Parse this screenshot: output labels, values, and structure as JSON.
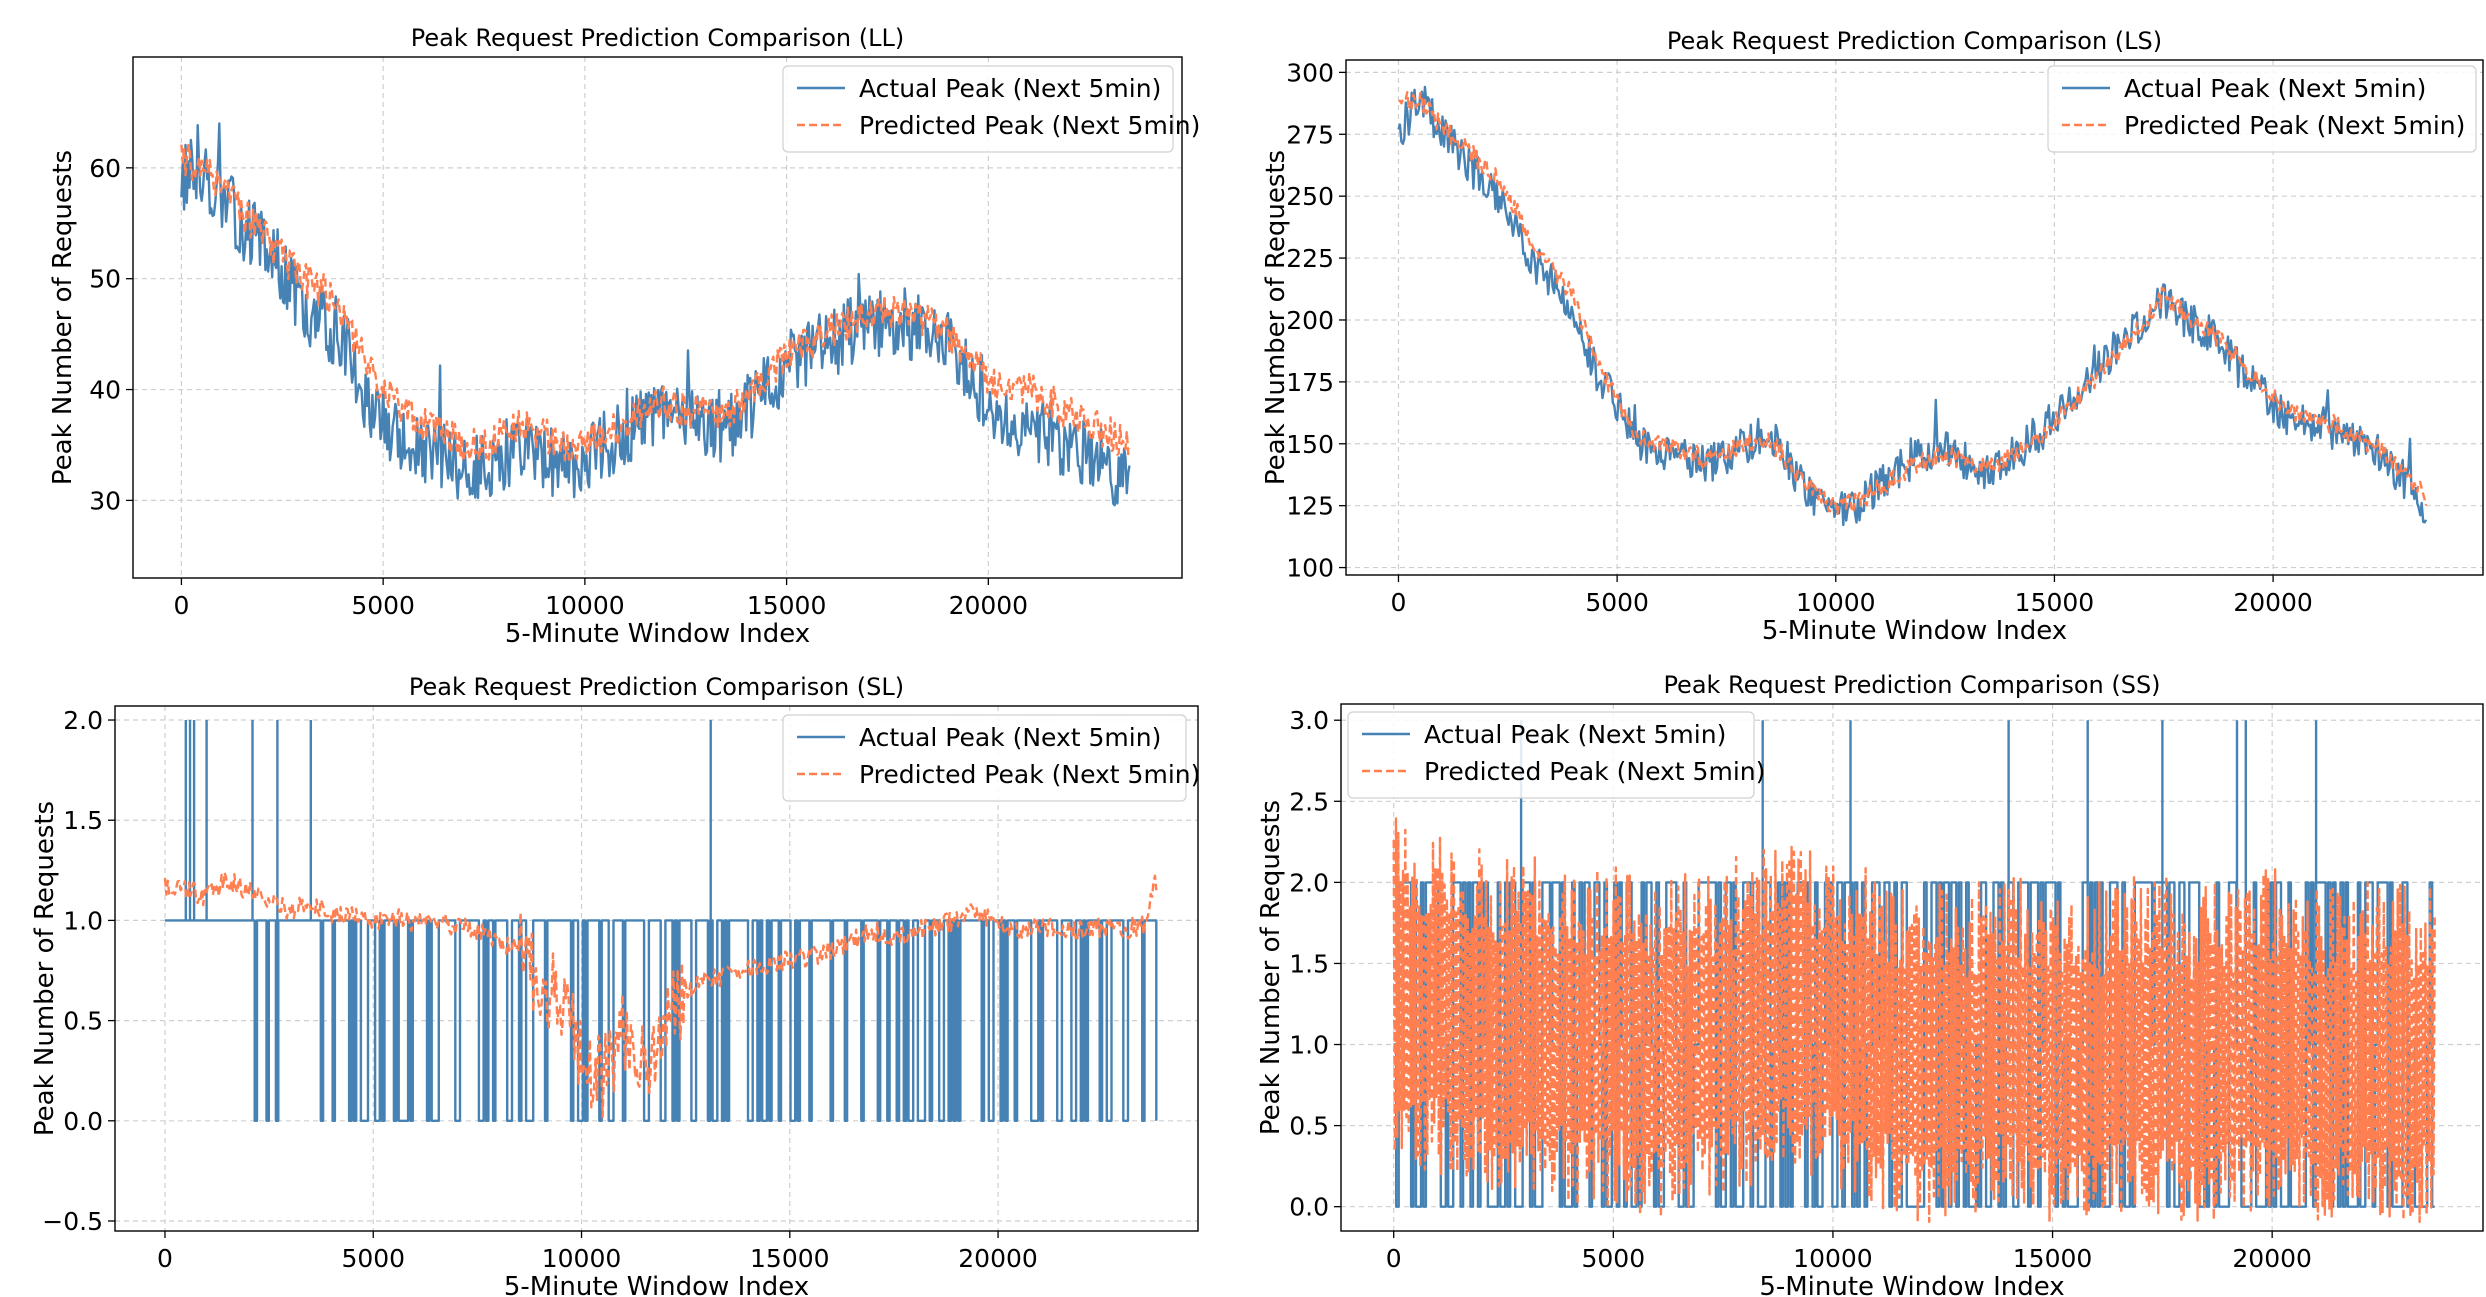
{
  "chart_data": [
    {
      "type": "line",
      "title": "Peak Request Prediction Comparison (LL)",
      "xlabel": "5-Minute Window Index",
      "ylabel": "Peak Number of Requests",
      "xlim": [
        -1200,
        24800
      ],
      "ylim": [
        23,
        70
      ],
      "xticks": [
        0,
        5000,
        10000,
        15000,
        20000
      ],
      "yticks": [
        30,
        40,
        50,
        60
      ],
      "ytick_labels": [
        "30",
        "40",
        "50",
        "60"
      ],
      "grid": true,
      "legend": {
        "position": "top-right",
        "entries": [
          "Actual Peak (Next 5min)",
          "Predicted Peak (Next 5min)"
        ]
      },
      "series": [
        {
          "name": "Actual Peak (Next 5min)",
          "color": "#4682b4",
          "style": "solid",
          "x": [
            0,
            500,
            1000,
            1500,
            2000,
            2500,
            3000,
            3500,
            4000,
            4500,
            5000,
            5500,
            6000,
            6500,
            7000,
            7500,
            8000,
            8500,
            9000,
            9500,
            10000,
            10500,
            11000,
            11500,
            12000,
            12500,
            13000,
            13500,
            14000,
            14500,
            15000,
            15500,
            16000,
            16500,
            17000,
            17500,
            18000,
            18500,
            19000,
            19500,
            20000,
            20500,
            21000,
            21500,
            22000,
            22500,
            23000,
            23500
          ],
          "y": [
            59,
            60,
            57,
            55,
            53,
            51,
            47,
            46,
            45,
            40,
            37,
            35,
            34,
            34,
            33,
            33,
            34,
            35,
            34,
            33,
            34,
            35,
            36,
            37,
            38,
            37,
            37,
            36,
            38,
            40,
            42,
            43,
            44,
            45,
            46,
            46,
            46,
            45,
            44,
            42,
            39,
            37,
            37,
            36,
            35,
            34,
            33,
            32
          ]
        },
        {
          "name": "Predicted Peak (Next 5min)",
          "color": "#ff7f50",
          "style": "dashed",
          "x": [
            0,
            500,
            1000,
            1500,
            2000,
            2500,
            3000,
            3500,
            4000,
            4500,
            5000,
            5500,
            6000,
            6500,
            7000,
            7500,
            8000,
            8500,
            9000,
            9500,
            10000,
            10500,
            11000,
            11500,
            12000,
            12500,
            13000,
            13500,
            14000,
            14500,
            15000,
            15500,
            16000,
            16500,
            17000,
            17500,
            18000,
            18500,
            19000,
            19500,
            20000,
            20500,
            21000,
            21500,
            22000,
            22500,
            23000,
            23500
          ],
          "y": [
            61,
            60,
            58,
            56,
            54,
            52,
            50,
            49,
            47,
            43,
            40,
            38,
            37,
            36,
            35,
            35,
            36,
            37,
            36,
            35,
            35,
            36,
            37,
            38,
            39,
            38,
            38,
            38,
            39,
            41,
            43,
            44,
            45,
            46,
            47,
            47,
            47,
            46,
            45,
            43,
            41,
            40,
            40,
            39,
            38,
            37,
            36,
            35
          ]
        }
      ]
    },
    {
      "type": "line",
      "title": "Peak Request Prediction Comparison (LS)",
      "xlabel": "5-Minute Window Index",
      "ylabel": "Peak Number of Requests",
      "xlim": [
        -1200,
        24800
      ],
      "ylim": [
        97,
        305
      ],
      "xticks": [
        0,
        5000,
        10000,
        15000,
        20000
      ],
      "yticks": [
        100,
        125,
        150,
        175,
        200,
        225,
        250,
        275,
        300
      ],
      "ytick_labels": [
        "100",
        "125",
        "150",
        "175",
        "200",
        "225",
        "250",
        "275",
        "300"
      ],
      "grid": true,
      "legend": {
        "position": "top-right",
        "entries": [
          "Actual Peak (Next 5min)",
          "Predicted Peak (Next 5min)"
        ]
      },
      "series": [
        {
          "name": "Actual Peak (Next 5min)",
          "color": "#4682b4",
          "style": "solid",
          "x": [
            0,
            500,
            1000,
            1500,
            2000,
            2500,
            3000,
            3500,
            4000,
            4500,
            5000,
            5500,
            6000,
            6500,
            7000,
            7500,
            8000,
            8500,
            9000,
            9500,
            10000,
            10500,
            11000,
            11500,
            12000,
            12500,
            13000,
            13500,
            14000,
            14500,
            15000,
            15500,
            16000,
            16500,
            17000,
            17500,
            18000,
            18500,
            19000,
            19500,
            20000,
            20500,
            21000,
            21500,
            22000,
            22500,
            23000,
            23500
          ],
          "y": [
            275,
            290,
            275,
            265,
            255,
            245,
            225,
            215,
            205,
            180,
            165,
            150,
            148,
            145,
            142,
            145,
            150,
            155,
            140,
            128,
            122,
            125,
            135,
            140,
            145,
            148,
            142,
            138,
            145,
            152,
            160,
            170,
            180,
            190,
            200,
            208,
            200,
            195,
            185,
            175,
            165,
            160,
            158,
            155,
            150,
            145,
            135,
            125
          ]
        },
        {
          "name": "Predicted Peak (Next 5min)",
          "color": "#ff7f50",
          "style": "dashed",
          "x": [
            0,
            500,
            1000,
            1500,
            2000,
            2500,
            3000,
            3500,
            4000,
            4500,
            5000,
            5500,
            6000,
            6500,
            7000,
            7500,
            8000,
            8500,
            9000,
            9500,
            10000,
            10500,
            11000,
            11500,
            12000,
            12500,
            13000,
            13500,
            14000,
            14500,
            15000,
            15500,
            16000,
            16500,
            17000,
            17500,
            18000,
            18500,
            19000,
            19500,
            20000,
            20500,
            21000,
            21500,
            22000,
            22500,
            23000,
            23500
          ],
          "y": [
            290,
            288,
            278,
            270,
            262,
            252,
            232,
            220,
            210,
            185,
            168,
            152,
            150,
            147,
            144,
            146,
            150,
            152,
            140,
            130,
            125,
            126,
            132,
            138,
            143,
            146,
            143,
            140,
            145,
            150,
            158,
            168,
            178,
            188,
            198,
            210,
            202,
            196,
            188,
            178,
            168,
            163,
            160,
            157,
            152,
            147,
            138,
            128
          ]
        }
      ]
    },
    {
      "type": "line",
      "title": "Peak Request Prediction Comparison (SL)",
      "xlabel": "5-Minute Window Index",
      "ylabel": "Peak Number of Requests",
      "xlim": [
        -1200,
        24800
      ],
      "ylim": [
        -0.55,
        2.07
      ],
      "xticks": [
        0,
        5000,
        10000,
        15000,
        20000
      ],
      "yticks": [
        -0.5,
        0.0,
        0.5,
        1.0,
        1.5,
        2.0
      ],
      "ytick_labels": [
        "−0.5",
        "0.0",
        "0.5",
        "1.0",
        "1.5",
        "2.0"
      ],
      "grid": true,
      "legend": {
        "position": "top-right",
        "entries": [
          "Actual Peak (Next 5min)",
          "Predicted Peak (Next 5min)"
        ]
      },
      "spikes": [
        500,
        600,
        700,
        1000,
        2100,
        2700,
        3500,
        13100
      ],
      "series": [
        {
          "name": "Actual Peak (Next 5min)",
          "color": "#4682b4",
          "style": "solid",
          "x": [
            0,
            1000,
            2000,
            3000,
            4000,
            5000,
            6000,
            7000,
            8000,
            9000,
            10000,
            11000,
            12000,
            13000,
            14000,
            15000,
            16000,
            17000,
            18000,
            19000,
            20000,
            21000,
            22000,
            23000,
            23800
          ],
          "y": [
            1,
            1,
            1,
            1,
            1,
            1,
            1,
            1,
            1,
            1,
            1,
            1,
            1,
            1,
            1,
            1,
            1,
            1,
            1,
            1,
            1,
            1,
            1,
            1,
            1
          ]
        },
        {
          "name": "Predicted Peak (Next 5min)",
          "color": "#ff7f50",
          "style": "dashed",
          "x": [
            0,
            500,
            1000,
            1500,
            2000,
            2500,
            3000,
            3500,
            4000,
            4500,
            5000,
            5500,
            6000,
            6500,
            7000,
            7500,
            8000,
            8500,
            9000,
            9500,
            10000,
            10500,
            11000,
            11500,
            12000,
            12500,
            13000,
            13500,
            14000,
            14500,
            15000,
            15500,
            16000,
            16500,
            17000,
            17500,
            18000,
            18500,
            19000,
            19500,
            20000,
            20500,
            21000,
            21500,
            22000,
            22500,
            23000,
            23500,
            23800
          ],
          "y": [
            1.18,
            1.15,
            1.12,
            1.2,
            1.15,
            1.1,
            1.05,
            1.08,
            1.03,
            1.02,
            1.0,
            1.02,
            0.98,
            1.0,
            0.97,
            0.95,
            0.9,
            0.85,
            0.7,
            0.6,
            0.35,
            0.2,
            0.45,
            0.25,
            0.55,
            0.65,
            0.7,
            0.72,
            0.75,
            0.78,
            0.8,
            0.82,
            0.85,
            0.9,
            0.95,
            0.92,
            0.95,
            0.97,
            1.0,
            1.05,
            0.98,
            0.95,
            0.97,
            0.96,
            0.95,
            0.97,
            0.95,
            0.98,
            1.2
          ]
        }
      ]
    },
    {
      "type": "line",
      "title": "Peak Request Prediction Comparison (SS)",
      "xlabel": "5-Minute Window Index",
      "ylabel": "Peak Number of Requests",
      "xlim": [
        -1200,
        24800
      ],
      "ylim": [
        -0.15,
        3.1
      ],
      "xticks": [
        0,
        5000,
        10000,
        15000,
        20000
      ],
      "yticks": [
        0.0,
        0.5,
        1.0,
        1.5,
        2.0,
        2.5,
        3.0
      ],
      "ytick_labels": [
        "0.0",
        "0.5",
        "1.0",
        "1.5",
        "2.0",
        "2.5",
        "3.0"
      ],
      "grid": true,
      "legend": {
        "position": "top-left",
        "entries": [
          "Actual Peak (Next 5min)",
          "Predicted Peak (Next 5min)"
        ]
      },
      "spikes": [
        2900,
        8400,
        10400,
        14000,
        15800,
        17500,
        19200,
        19400,
        21000
      ],
      "series": [
        {
          "name": "Actual Peak (Next 5min)",
          "color": "#4682b4",
          "style": "solid",
          "x": [
            0,
            1000,
            2000,
            3000,
            4000,
            5000,
            6000,
            7000,
            8000,
            9000,
            10000,
            11000,
            12000,
            13000,
            14000,
            15000,
            16000,
            17000,
            18000,
            19000,
            20000,
            21000,
            22000,
            23000,
            23700
          ],
          "y": [
            1,
            1,
            1,
            1,
            1,
            1,
            1,
            1,
            1,
            1,
            1,
            1,
            1,
            1,
            1,
            1,
            1,
            1,
            1,
            1,
            1,
            1,
            1,
            1,
            1
          ]
        },
        {
          "name": "Predicted Peak (Next 5min)",
          "color": "#ff7f50",
          "style": "dashed",
          "x": [
            0,
            1000,
            2000,
            3000,
            4000,
            5000,
            6000,
            7000,
            8000,
            9000,
            10000,
            11000,
            12000,
            13000,
            14000,
            15000,
            16000,
            17000,
            18000,
            19000,
            20000,
            21000,
            22000,
            23000,
            23700
          ],
          "y": [
            1.4,
            1.3,
            1.2,
            1.2,
            1.1,
            1.1,
            1.0,
            1.1,
            1.2,
            1.3,
            1.2,
            1.1,
            1.0,
            1.0,
            1.1,
            1.0,
            1.0,
            1.1,
            1.0,
            1.0,
            1.1,
            1.0,
            1.0,
            1.0,
            1.0
          ]
        }
      ]
    }
  ]
}
